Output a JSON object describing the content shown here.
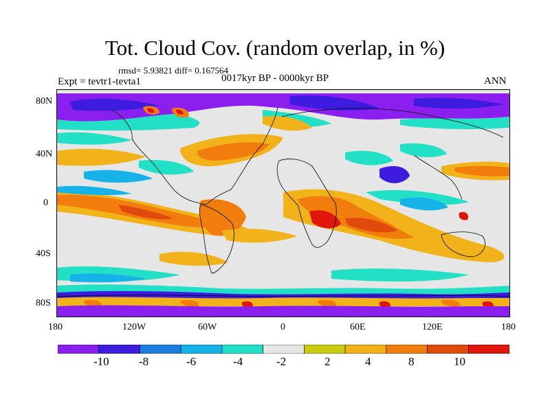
{
  "title": "Tot. Cloud Cov. (random overlap, in %)",
  "stats": "rmsd= 5.93821  diff= 0.167564",
  "experiment": "Expt = tevtr1-tevta1",
  "period": "0017kyr BP - 0000kyr BP",
  "season": "ANN",
  "lat_labels": [
    "80N",
    "40N",
    "0",
    "40S",
    "80S"
  ],
  "lon_labels": [
    "180",
    "120W",
    "60W",
    "0",
    "60E",
    "120E",
    "180"
  ],
  "colorbar": {
    "labels": [
      "-10",
      "-8",
      "-6",
      "-4",
      "-2",
      "2",
      "4",
      "8",
      "10"
    ],
    "colors": [
      "#8a1ff0",
      "#3d1ce0",
      "#1d7ce0",
      "#17b3e8",
      "#22e0c6",
      "#e6e6e6",
      "#c7cc10",
      "#f2b21a",
      "#f07d0c",
      "#e04a0c",
      "#e0160c"
    ]
  },
  "palette": {
    "violet": "#8a1ff0",
    "blue": "#3d1ce0",
    "mid_blue": "#1d7ce0",
    "light_blue": "#17b3e8",
    "cyan": "#22e0c6",
    "neutral": "#e6e6e6",
    "olive": "#c7cc10",
    "amber": "#f2b21a",
    "orange": "#f07d0c",
    "red_orange": "#e04a0c",
    "red": "#e0160c",
    "coastline": "#000000"
  }
}
